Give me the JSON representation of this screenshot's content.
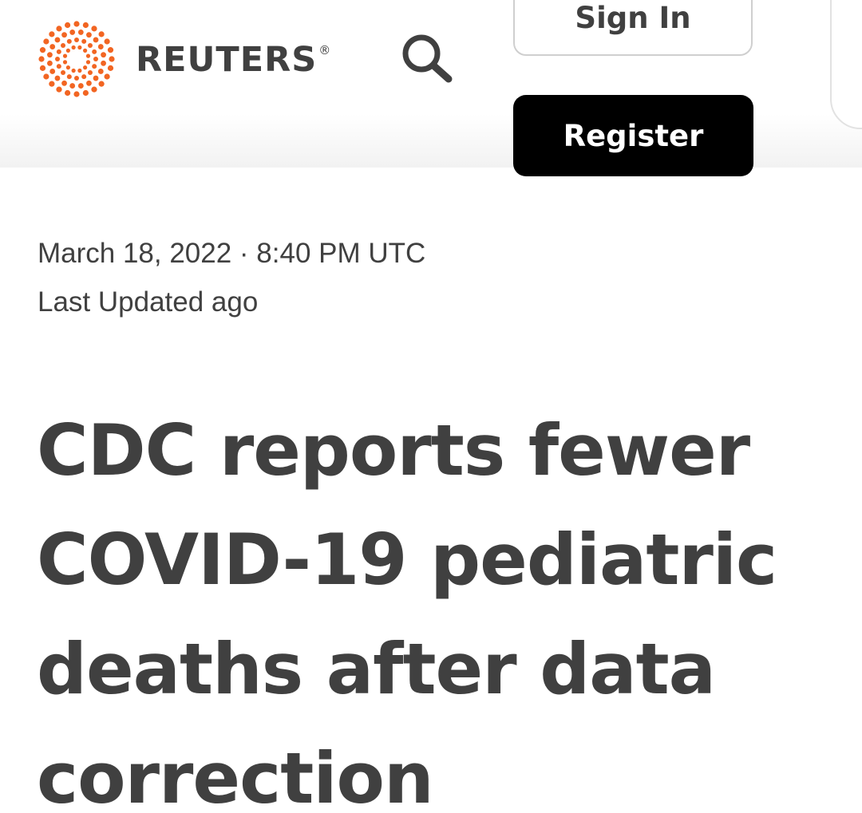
{
  "header": {
    "brand_name": "REUTERS",
    "brand_mark": "®",
    "brand_color": "#f26522",
    "search_icon": "search-icon",
    "sign_in_label": "Sign In",
    "register_label": "Register"
  },
  "article": {
    "date": "March 18, 2022 · 8:40 PM UTC",
    "last_updated": "Last Updated ago",
    "headline": "CDC reports fewer COVID-19 pediatric deaths after data correction"
  }
}
